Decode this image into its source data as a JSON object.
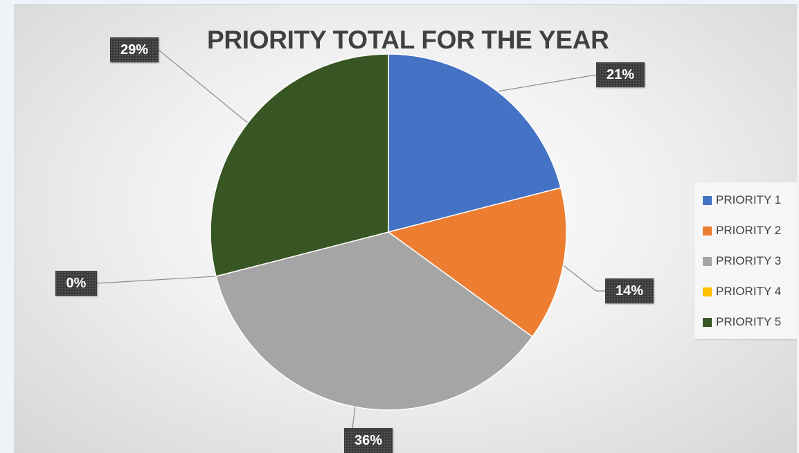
{
  "chart_data": {
    "type": "pie",
    "title": "PRIORITY TOTAL FOR THE YEAR",
    "categories": [
      "PRIORITY 1",
      "PRIORITY 2",
      "PRIORITY 3",
      "PRIORITY 4",
      "PRIORITY 5"
    ],
    "values": [
      21,
      14,
      36,
      0,
      29
    ],
    "data_labels": [
      "21%",
      "14%",
      "36%",
      "0%",
      "29%"
    ],
    "colors": [
      "#4472c4",
      "#ed7d31",
      "#a5a5a5",
      "#ffc000",
      "#375623"
    ],
    "legend_position": "right",
    "start_angle": "12 o'clock",
    "direction": "clockwise"
  }
}
